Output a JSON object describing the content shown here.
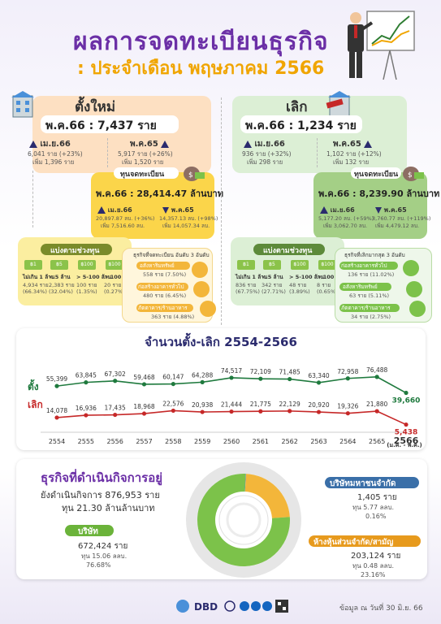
{
  "header": {
    "title": "ผลการจดทะเบียนธุรกิจ",
    "subtitle": ": ประจำเดือน พฤษภาคม 2566"
  },
  "new_reg": {
    "title": "ตั้งใหม่",
    "main": "พ.ค.66 : 7,437 ราย",
    "m1_label": "เม.ย.66",
    "m1_line1": "6,041 ราย (+23%)",
    "m1_line2": "เพิ่ม 1,396 ราย",
    "m2_label": "พ.ค.65",
    "m2_line1": "5,917 ราย (+26%)",
    "m2_line2": "เพิ่ม 1,520 ราย",
    "capital_title": "ทุนจดทะเบียน",
    "capital_main": "พ.ค.66 : 28,414.47 ล้านบาท",
    "c1_label": "เม.ย.66",
    "c1_line1": "20,897.87 ลบ. (+36%)",
    "c1_line2": "เพิ่ม 7,516.60 ลบ.",
    "c2_label": "พ.ค.65",
    "c2_line1": "14,357.13 ลบ. (+98%)",
    "c2_line2": "เพิ่ม 14,057.34 ลบ.",
    "range_title": "แบ่งตามช่วงทุน",
    "ranges": [
      {
        "label": "ไม่เกิน 1 ล้าน",
        "count": "4,934 ราย",
        "pct": "(66.34%)"
      },
      {
        "label": "< 5 ล้าน",
        "count": "2,383 ราย",
        "pct": "(32.04%)"
      },
      {
        "label": "> 5-100 ล้าน",
        "count": "100 ราย",
        "pct": "(1.35%)"
      },
      {
        "label": "> 100 ล้าน",
        "count": "20 ราย",
        "pct": "(0.27%)"
      }
    ],
    "top_title": "ธุรกิจที่จดทะเบียน",
    "top_sub": "อันดับ 3 อันดับ",
    "top": [
      {
        "label": "อสังหาริมทรัพย์",
        "value": "558 ราย (7.50%)"
      },
      {
        "label": "ก่อสร้างอาคารทั่วไป",
        "value": "480 ราย (6.45%)"
      },
      {
        "label": "ภัตตาคาร/ร้านอาหาร",
        "value": "363 ราย (4.88%)"
      }
    ]
  },
  "closed": {
    "title": "เลิก",
    "main": "พ.ค.66 : 1,234 ราย",
    "m1_label": "เม.ย.66",
    "m1_line1": "936 ราย (+32%)",
    "m1_line2": "เพิ่ม 298 ราย",
    "m2_label": "พ.ค.65",
    "m2_line1": "1,102 ราย (+12%)",
    "m2_line2": "เพิ่ม 132 ราย",
    "capital_title": "ทุนจดทะเบียน",
    "capital_main": "พ.ค.66 : 8,239.90 ล้านบาท",
    "c1_label": "เม.ย.66",
    "c1_line1": "5,177.20 ลบ. (+59%)",
    "c1_line2": "เพิ่ม 3,062.70 ลบ.",
    "c2_label": "พ.ค.65",
    "c2_line1": "3,760.77 ลบ. (+119%)",
    "c2_line2": "เพิ่ม 4,479.12 ลบ.",
    "range_title": "แบ่งตามช่วงทุน",
    "ranges": [
      {
        "label": "ไม่เกิน 1 ล้าน",
        "count": "836 ราย",
        "pct": "(67.75%)"
      },
      {
        "label": "< 5 ล้าน",
        "count": "342 ราย",
        "pct": "(27.71%)"
      },
      {
        "label": "> 5-100 ล้าน",
        "count": "48 ราย",
        "pct": "(3.89%)"
      },
      {
        "label": "> 100 ล้าน",
        "count": "8 ราย",
        "pct": "(0.65%)"
      }
    ],
    "top_title": "ธุรกิจที่เลิกมากสุด",
    "top_sub": "3 อันดับ",
    "top": [
      {
        "label": "ก่อสร้างอาคารทั่วไป",
        "value": "136 ราย (11.02%)"
      },
      {
        "label": "อสังหาริมทรัพย์",
        "value": "63 ราย (5.11%)"
      },
      {
        "label": "ภัตตาคาร/ร้านอาหาร",
        "value": "34 ราย (2.75%)"
      }
    ]
  },
  "chart_data": {
    "type": "line",
    "title": "จำนวนตั้ง-เลิก 2554-2566",
    "categories": [
      "2554",
      "2555",
      "2556",
      "2557",
      "2558",
      "2559",
      "2560",
      "2561",
      "2562",
      "2563",
      "2564",
      "2565",
      "2566"
    ],
    "x_note": "(ม.ค. - พ.ค.)",
    "series": [
      {
        "name": "ตั้ง",
        "color": "#1f7a3e",
        "values": [
          55399,
          63845,
          67302,
          59468,
          60147,
          64288,
          74517,
          72109,
          71485,
          63340,
          72958,
          76488,
          39660
        ],
        "labels": [
          "55,399",
          "63,845",
          "67,302",
          "59,468",
          "60,147",
          "64,288",
          "74,517",
          "72,109",
          "71,485",
          "63,340",
          "72,958",
          "76,488",
          "39,660"
        ]
      },
      {
        "name": "เลิก",
        "color": "#c62828",
        "values": [
          14078,
          16936,
          17435,
          18968,
          22576,
          20938,
          21444,
          21775,
          22129,
          20920,
          19326,
          21880,
          5438
        ],
        "labels": [
          "14,078",
          "16,936",
          "17,435",
          "18,968",
          "22,576",
          "20,938",
          "21,444",
          "21,775",
          "22,129",
          "20,920",
          "19,326",
          "21,880",
          "5,438"
        ]
      }
    ]
  },
  "active": {
    "title": "ธุรกิจที่ดำเนินกิจการอยู่",
    "line1": "ยังดำเนินกิจการ 876,953 ราย",
    "line2": "ทุน 21.30 ล้านล้านบาท",
    "co_title": "บริษัท",
    "co_line1": "672,424 ราย",
    "co_line2": "ทุน 15.06 ลลบ.",
    "co_pct": "76.68%",
    "co_value": 76.68,
    "pub_title": "บริษัทมหาชนจำกัด",
    "pub_line1": "1,405 ราย",
    "pub_line2": "ทุน 5.77 ลลบ.",
    "pub_pct": "0.16%",
    "pub_value": 0.16,
    "part_title": "ห้างหุ้นส่วนจำกัด/สามัญ",
    "part_line1": "203,124 ราย",
    "part_line2": "ทุน 0.48 ลลบ.",
    "part_pct": "23.16%",
    "part_value": 23.16,
    "colors": {
      "company": "#7cc24a",
      "public": "#4a90d9",
      "partnership": "#f3b63a"
    }
  },
  "footer": {
    "logo": "DBD",
    "note": "ข้อมูล ณ วันที่ 30 มิ.ย. 66"
  }
}
